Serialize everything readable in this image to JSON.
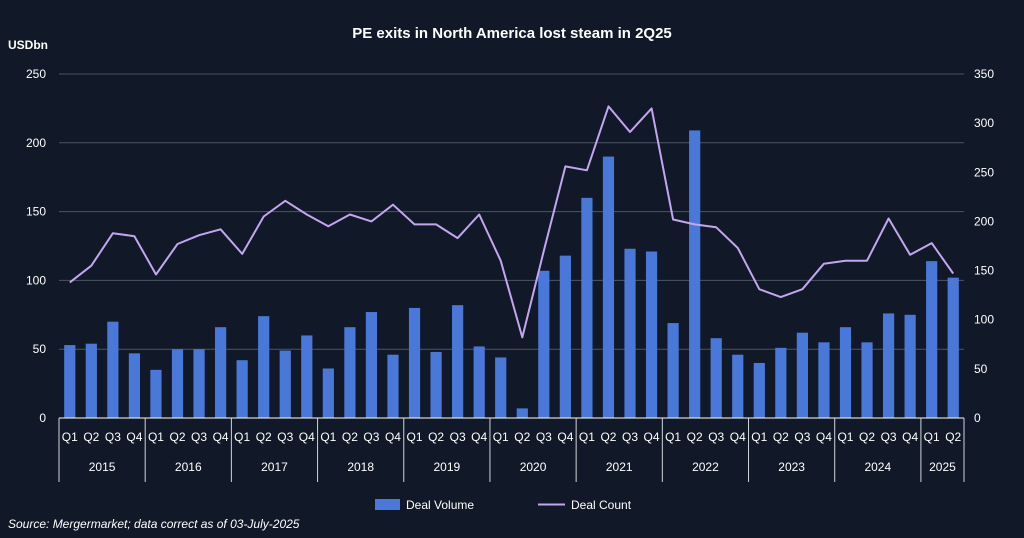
{
  "chart_data": {
    "type": "bar",
    "title": "PE exits in North America lost steam in 2Q25",
    "ylabel": "USDbn",
    "y_left": {
      "lim": [
        0,
        250
      ],
      "ticks": [
        0,
        50,
        100,
        150,
        200,
        250
      ]
    },
    "y_right": {
      "lim": [
        0,
        350
      ],
      "ticks": [
        0,
        50,
        100,
        150,
        200,
        250,
        300,
        350
      ]
    },
    "quarters": [
      "Q1",
      "Q2",
      "Q3",
      "Q4",
      "Q1",
      "Q2",
      "Q3",
      "Q4",
      "Q1",
      "Q2",
      "Q3",
      "Q4",
      "Q1",
      "Q2",
      "Q3",
      "Q4",
      "Q1",
      "Q2",
      "Q3",
      "Q4",
      "Q1",
      "Q2",
      "Q3",
      "Q4",
      "Q1",
      "Q2",
      "Q3",
      "Q4",
      "Q1",
      "Q2",
      "Q3",
      "Q4",
      "Q1",
      "Q2",
      "Q3",
      "Q4",
      "Q1",
      "Q2",
      "Q3",
      "Q4",
      "Q1",
      "Q2"
    ],
    "years": [
      {
        "label": "2015",
        "count": 4
      },
      {
        "label": "2016",
        "count": 4
      },
      {
        "label": "2017",
        "count": 4
      },
      {
        "label": "2018",
        "count": 4
      },
      {
        "label": "2019",
        "count": 4
      },
      {
        "label": "2020",
        "count": 4
      },
      {
        "label": "2021",
        "count": 4
      },
      {
        "label": "2022",
        "count": 4
      },
      {
        "label": "2023",
        "count": 4
      },
      {
        "label": "2024",
        "count": 4
      },
      {
        "label": "2025",
        "count": 2
      }
    ],
    "series": [
      {
        "name": "Deal Volume",
        "type": "bar",
        "axis": "left",
        "color": "#4a78d8",
        "values": [
          53,
          54,
          70,
          47,
          35,
          50,
          50,
          66,
          42,
          74,
          49,
          60,
          36,
          66,
          77,
          46,
          80,
          48,
          82,
          52,
          44,
          7,
          107,
          118,
          160,
          190,
          123,
          121,
          69,
          209,
          58,
          46,
          40,
          51,
          62,
          55,
          66,
          55,
          76,
          75,
          114,
          102
        ]
      },
      {
        "name": "Deal Count",
        "type": "line",
        "axis": "right",
        "color": "#c4a5f0",
        "values": [
          138,
          155,
          188,
          185,
          146,
          177,
          186,
          192,
          167,
          205,
          221,
          207,
          195,
          207,
          200,
          217,
          197,
          197,
          183,
          207,
          160,
          82,
          170,
          256,
          252,
          317,
          291,
          315,
          202,
          197,
          194,
          173,
          131,
          123,
          131,
          157,
          160,
          160,
          203,
          166,
          178,
          147
        ]
      }
    ],
    "legend": [
      "Deal Volume",
      "Deal Count"
    ],
    "legend_position": "bottom",
    "source": "Source: Mergermarket; data correct as of 03-July-2025"
  }
}
